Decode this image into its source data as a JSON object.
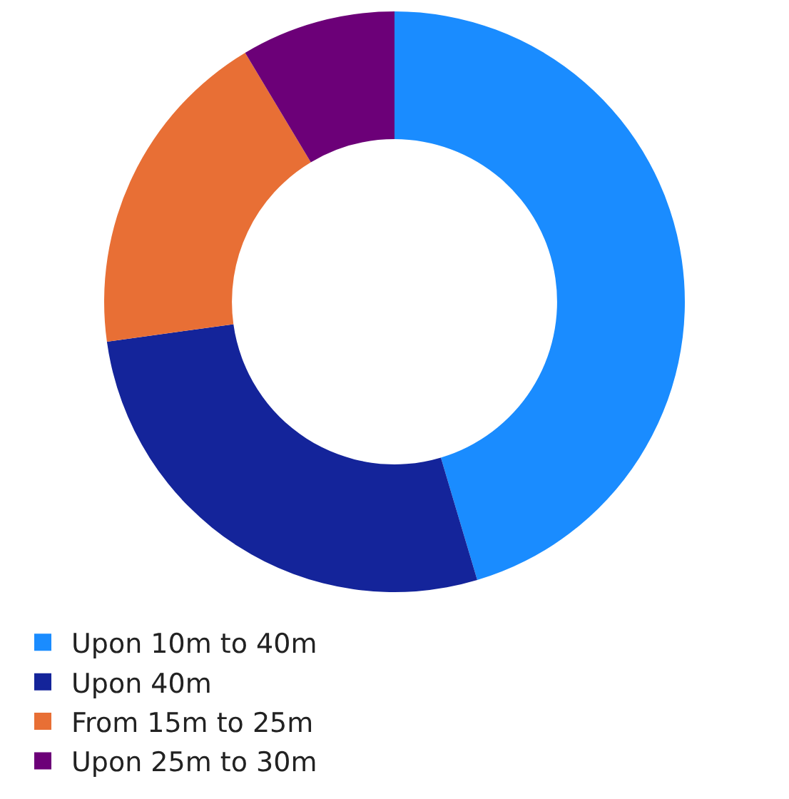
{
  "chart_data": {
    "type": "donut",
    "categories": [
      "Upon 10m to 40m",
      "Upon 40m",
      "From 15m to 25m",
      "Upon 25m to 30m"
    ],
    "values": [
      45.4,
      27.4,
      18.6,
      8.6
    ],
    "colors": [
      "#1a8cff",
      "#14249a",
      "#e86f35",
      "#6c0078"
    ],
    "legend": "bottom"
  }
}
